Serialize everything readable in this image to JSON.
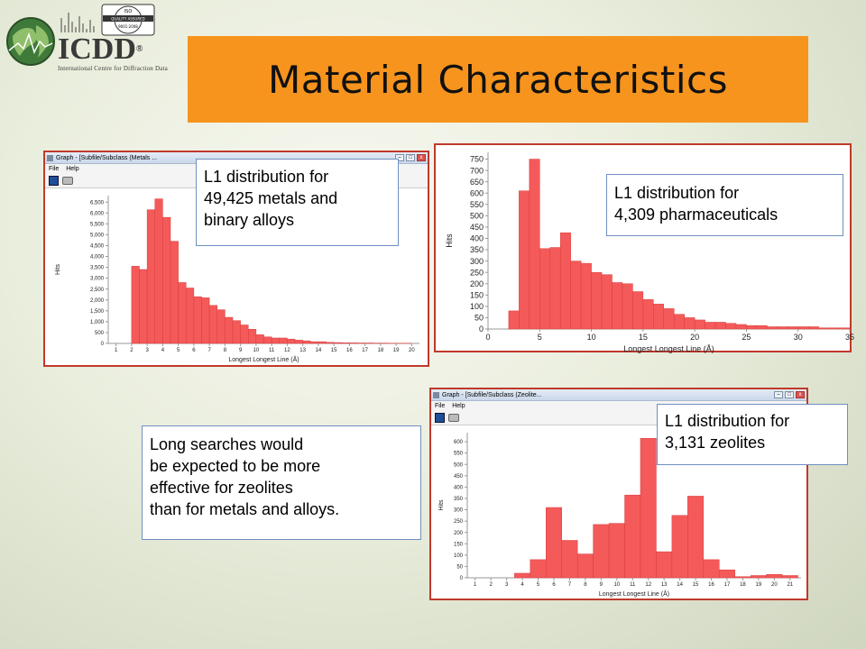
{
  "logo": {
    "name": "ICDD",
    "reg_mark": "®",
    "tagline": "International Centre for Diffraction Data",
    "iso_badge": [
      "ISO",
      "9001:2008",
      "QUALITY ASSURED COMPANY",
      "CERT.NO.",
      "11488-1"
    ]
  },
  "title": "Material Characteristics",
  "colors": {
    "title_bar": "#f7941d",
    "bar_fill": "#f45a5a",
    "bar_stroke": "#d93c3c",
    "window_border": "#c0392b"
  },
  "windows": {
    "metals": {
      "title": "Graph - [Subfile/Subclass (Metals ...",
      "menu": [
        "File",
        "Help"
      ]
    },
    "zeolites": {
      "title": "Graph - [Subfile/Subclass (Zeolite...",
      "menu": [
        "File",
        "Help"
      ]
    }
  },
  "callouts": {
    "metals": [
      "L1 distribution for",
      "49,425 metals and",
      "binary alloys"
    ],
    "pharma": [
      "L1 distribution for",
      "4,309 pharmaceuticals"
    ],
    "zeolites": [
      "L1 distribution for",
      "3,131 zeolites"
    ],
    "note": [
      "Long searches would",
      "be expected to be more",
      "effective for zeolites",
      "than for metals and alloys."
    ]
  },
  "chart_data": [
    {
      "id": "metals",
      "type": "bar",
      "xlabel": "Longest Longest Line (Å)",
      "ylabel": "Hits",
      "xlim": [
        0.5,
        20.5
      ],
      "ylim": [
        0,
        6800
      ],
      "xticks": [
        1,
        2,
        3,
        4,
        5,
        6,
        7,
        8,
        9,
        10,
        11,
        12,
        13,
        14,
        15,
        16,
        17,
        18,
        19,
        20
      ],
      "yticks": [
        0,
        500,
        1000,
        1500,
        2000,
        2500,
        3000,
        3500,
        4000,
        4500,
        5000,
        5500,
        6000,
        6500
      ],
      "ytick_labels": [
        "0",
        "500",
        "1,000",
        "1,500",
        "2,000",
        "2,500",
        "3,000",
        "3,500",
        "4,000",
        "4,500",
        "5,000",
        "5,500",
        "6,000",
        "6,500"
      ],
      "bin_width": 0.5,
      "bins_start": [
        2,
        2.5,
        3,
        3.5,
        4,
        4.5,
        5,
        5.5,
        6,
        6.5,
        7,
        7.5,
        8,
        8.5,
        9,
        9.5,
        10,
        10.5,
        11,
        11.5,
        12,
        12.5,
        13,
        13.5,
        14,
        14.5,
        15,
        15.5,
        16,
        16.5,
        17,
        17.5,
        18,
        18.5,
        19,
        19.5
      ],
      "values": [
        3550,
        3400,
        6150,
        6650,
        5800,
        4700,
        2800,
        2550,
        2150,
        2100,
        1750,
        1550,
        1200,
        1050,
        850,
        650,
        400,
        300,
        250,
        250,
        200,
        150,
        120,
        80,
        80,
        50,
        40,
        30,
        25,
        20,
        20,
        15,
        15,
        10,
        10,
        10
      ]
    },
    {
      "id": "pharma",
      "type": "bar",
      "xlabel": "Longest Longest Line (Å)",
      "ylabel": "Hits",
      "xlim": [
        0,
        35
      ],
      "ylim": [
        0,
        780
      ],
      "xticks": [
        0,
        5,
        10,
        15,
        20,
        25,
        30,
        35
      ],
      "xtick_labels": [
        "0",
        "5",
        "10",
        "15",
        "20",
        "25",
        "30",
        "35"
      ],
      "yticks": [
        0,
        50,
        100,
        150,
        200,
        250,
        300,
        350,
        400,
        450,
        500,
        550,
        600,
        650,
        700,
        750
      ],
      "bin_width": 1,
      "bins_start": [
        2,
        3,
        4,
        5,
        6,
        7,
        8,
        9,
        10,
        11,
        12,
        13,
        14,
        15,
        16,
        17,
        18,
        19,
        20,
        21,
        22,
        23,
        24,
        25,
        26,
        27,
        28,
        29,
        30,
        31,
        32,
        33,
        34
      ],
      "values": [
        80,
        610,
        750,
        355,
        360,
        425,
        300,
        290,
        250,
        240,
        205,
        200,
        165,
        130,
        110,
        90,
        65,
        50,
        40,
        30,
        30,
        25,
        20,
        15,
        15,
        10,
        10,
        10,
        10,
        10,
        5,
        5,
        5
      ]
    },
    {
      "id": "zeolites",
      "type": "bar",
      "xlabel": "Longest Longest Line (Å)",
      "ylabel": "Hits",
      "xlim": [
        0.5,
        21.7
      ],
      "ylim": [
        0,
        640
      ],
      "xticks": [
        1,
        2,
        3,
        4,
        5,
        6,
        7,
        8,
        9,
        10,
        11,
        12,
        13,
        14,
        15,
        16,
        17,
        18,
        19,
        20,
        21
      ],
      "yticks": [
        0,
        50,
        100,
        150,
        200,
        250,
        300,
        350,
        400,
        450,
        500,
        550,
        600
      ],
      "bin_width": 1,
      "bins_start": [
        3.5,
        4.5,
        5.5,
        6.5,
        7.5,
        8.5,
        9.5,
        10.5,
        11.5,
        12.5,
        13.5,
        14.5,
        15.5,
        16.5,
        17.5,
        18.5,
        19.5,
        20.5
      ],
      "values": [
        20,
        80,
        310,
        165,
        105,
        235,
        240,
        365,
        615,
        115,
        275,
        360,
        80,
        35,
        5,
        10,
        15,
        10
      ]
    }
  ]
}
